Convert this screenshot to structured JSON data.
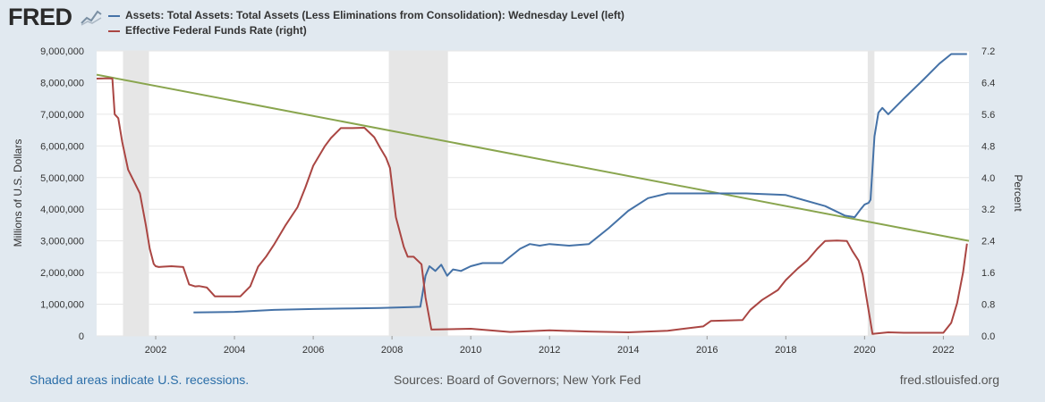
{
  "header": {
    "logo_text": "FRED"
  },
  "legend": [
    {
      "label": "Assets: Total Assets: Total Assets (Less Eliminations from Consolidation): Wednesday Level (left)",
      "color": "#4572a7"
    },
    {
      "label": "Effective Federal Funds Rate (right)",
      "color": "#aa4643"
    }
  ],
  "footer": {
    "recession_note": "Shaded areas indicate U.S. recessions.",
    "sources": "Sources: Board of Governors; New York Fed",
    "site": "fred.stlouisfed.org"
  },
  "chart_data": {
    "type": "line",
    "ylabel_left": "Millions of U.S. Dollars",
    "ylabel_right": "Percent",
    "xlim": [
      2000.5,
      2022.65
    ],
    "ylim_left": [
      0,
      9000000
    ],
    "ylim_right": [
      0,
      7.2
    ],
    "x_ticks": [
      "2002",
      "2004",
      "2006",
      "2008",
      "2010",
      "2012",
      "2014",
      "2016",
      "2018",
      "2020",
      "2022"
    ],
    "y_ticks_left": [
      "0",
      "1,000,000",
      "2,000,000",
      "3,000,000",
      "4,000,000",
      "5,000,000",
      "6,000,000",
      "7,000,000",
      "8,000,000",
      "9,000,000"
    ],
    "y_ticks_right": [
      "0.0",
      "0.8",
      "1.6",
      "2.4",
      "3.2",
      "4.0",
      "4.8",
      "5.6",
      "6.4",
      "7.2"
    ],
    "grid": true,
    "recessions": [
      [
        2001.17,
        2001.83
      ],
      [
        2007.92,
        2009.42
      ],
      [
        2020.08,
        2020.25
      ]
    ],
    "series": [
      {
        "name": "Assets: Total Assets: Total Assets (Less Eliminations from Consolidation): Wednesday Level (left)",
        "axis": "left",
        "color": "#4572a7",
        "x": [
          2002.96,
          2004.0,
          2005.0,
          2006.0,
          2007.0,
          2007.7,
          2008.5,
          2008.72,
          2008.85,
          2008.95,
          2009.1,
          2009.25,
          2009.4,
          2009.55,
          2009.75,
          2010.0,
          2010.3,
          2010.8,
          2011.0,
          2011.25,
          2011.5,
          2011.75,
          2012.0,
          2012.5,
          2013.0,
          2013.5,
          2014.0,
          2014.5,
          2015.0,
          2016.0,
          2017.0,
          2018.0,
          2019.0,
          2019.5,
          2019.75,
          2019.9,
          2020.0,
          2020.1,
          2020.15,
          2020.2,
          2020.25,
          2020.35,
          2020.45,
          2020.6,
          2021.0,
          2021.5,
          2021.9,
          2022.2,
          2022.6
        ],
        "y": [
          740000,
          760000,
          820000,
          850000,
          870000,
          880000,
          910000,
          920000,
          1900000,
          2200000,
          2050000,
          2250000,
          1900000,
          2100000,
          2050000,
          2200000,
          2300000,
          2300000,
          2500000,
          2750000,
          2900000,
          2850000,
          2900000,
          2850000,
          2900000,
          3400000,
          3950000,
          4350000,
          4500000,
          4500000,
          4500000,
          4450000,
          4100000,
          3800000,
          3750000,
          4000000,
          4150000,
          4200000,
          4300000,
          5300000,
          6300000,
          7050000,
          7200000,
          7000000,
          7500000,
          8100000,
          8600000,
          8900000,
          8900000
        ]
      },
      {
        "name": "Effective Federal Funds Rate (right)",
        "axis": "right",
        "color": "#aa4643",
        "x": [
          2000.5,
          2000.8,
          2000.9,
          2000.96,
          2001.05,
          2001.15,
          2001.3,
          2001.45,
          2001.6,
          2001.75,
          2001.85,
          2001.95,
          2002.0,
          2002.08,
          2002.2,
          2002.4,
          2002.7,
          2002.85,
          2003.0,
          2003.1,
          2003.3,
          2003.5,
          2003.6,
          2003.9,
          2004.15,
          2004.4,
          2004.6,
          2004.8,
          2005.0,
          2005.3,
          2005.6,
          2005.8,
          2006.0,
          2006.3,
          2006.45,
          2006.7,
          2007.0,
          2007.3,
          2007.55,
          2007.7,
          2007.85,
          2007.95,
          2008.1,
          2008.3,
          2008.4,
          2008.55,
          2008.75,
          2008.85,
          2009.0,
          2010.0,
          2011.0,
          2012.0,
          2013.0,
          2014.0,
          2015.0,
          2015.9,
          2016.1,
          2016.5,
          2016.9,
          2017.1,
          2017.4,
          2017.8,
          2018.0,
          2018.3,
          2018.55,
          2018.8,
          2019.0,
          2019.3,
          2019.55,
          2019.7,
          2019.85,
          2019.95,
          2020.1,
          2020.2,
          2020.6,
          2021.0,
          2021.5,
          2022.0,
          2022.2,
          2022.35,
          2022.5,
          2022.6
        ],
        "y": [
          6.5,
          6.51,
          6.5,
          5.6,
          5.5,
          4.9,
          4.2,
          3.9,
          3.6,
          2.8,
          2.2,
          1.82,
          1.76,
          1.74,
          1.75,
          1.76,
          1.74,
          1.3,
          1.25,
          1.26,
          1.22,
          1.0,
          1.0,
          1.0,
          1.0,
          1.25,
          1.75,
          2.0,
          2.3,
          2.8,
          3.25,
          3.75,
          4.3,
          4.8,
          5.0,
          5.25,
          5.25,
          5.26,
          5.02,
          4.75,
          4.5,
          4.24,
          3.0,
          2.25,
          2.0,
          2.0,
          1.81,
          0.97,
          0.16,
          0.18,
          0.1,
          0.14,
          0.11,
          0.09,
          0.13,
          0.24,
          0.38,
          0.39,
          0.4,
          0.66,
          0.91,
          1.16,
          1.41,
          1.7,
          1.91,
          2.2,
          2.4,
          2.41,
          2.4,
          2.13,
          1.9,
          1.55,
          0.65,
          0.05,
          0.09,
          0.08,
          0.08,
          0.08,
          0.33,
          0.83,
          1.6,
          2.33
        ]
      }
    ],
    "trend_line": {
      "color": "#89a54e",
      "axis": "left",
      "x": [
        2000.5,
        2022.65
      ],
      "y": [
        8250000,
        3000000
      ]
    }
  }
}
